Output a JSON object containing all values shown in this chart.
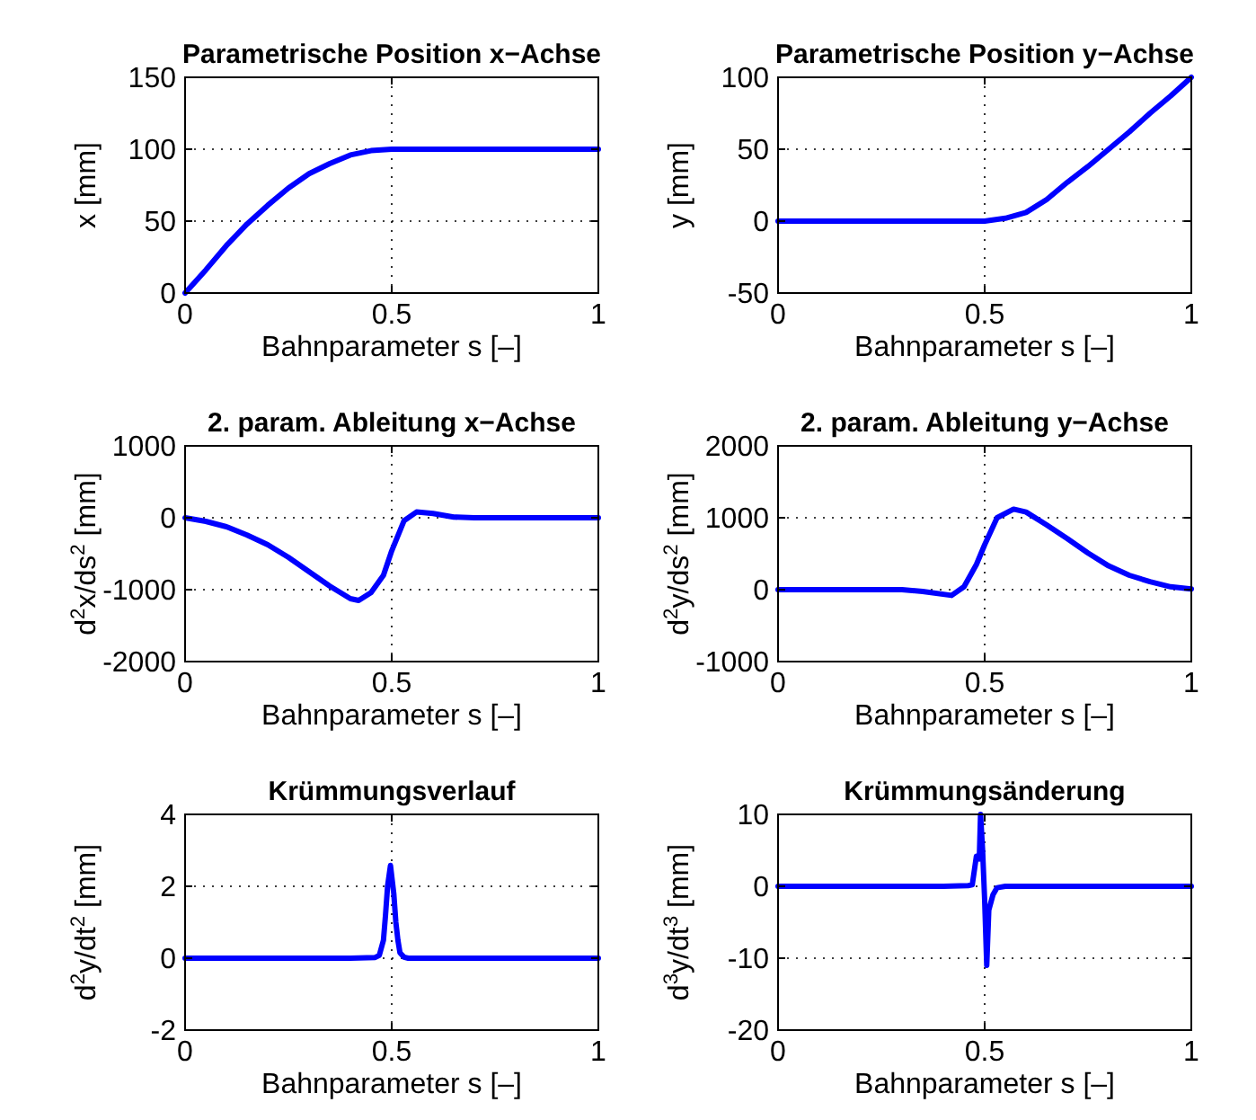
{
  "chart_data": [
    {
      "type": "line",
      "title": "Parametrische Position x−Achse",
      "xlabel": "Bahnparameter s [–]",
      "ylabel": "x [mm]",
      "xlim": [
        0,
        1
      ],
      "xticks": [
        0,
        0.5,
        1
      ],
      "ylim": [
        0,
        150
      ],
      "yticks": [
        0,
        50,
        100,
        150
      ],
      "grid": true,
      "marker": "none",
      "line_style": "solid",
      "series": [
        {
          "color": "#0000ff",
          "x": [
            0,
            0.05,
            0.1,
            0.15,
            0.2,
            0.25,
            0.3,
            0.35,
            0.4,
            0.45,
            0.5,
            0.6,
            0.7,
            0.8,
            0.9,
            1
          ],
          "values": [
            0,
            16,
            33,
            48,
            61,
            73,
            83,
            90,
            96,
            99,
            100,
            100,
            100,
            100,
            100,
            100
          ]
        }
      ]
    },
    {
      "type": "line",
      "title": "Parametrische Position y−Achse",
      "xlabel": "Bahnparameter s [–]",
      "ylabel": "y [mm]",
      "xlim": [
        0,
        1
      ],
      "xticks": [
        0,
        0.5,
        1
      ],
      "ylim": [
        -50,
        100
      ],
      "yticks": [
        -50,
        0,
        50,
        100
      ],
      "grid": true,
      "marker": "none",
      "line_style": "solid",
      "series": [
        {
          "color": "#0000ff",
          "x": [
            0,
            0.1,
            0.2,
            0.3,
            0.4,
            0.5,
            0.55,
            0.6,
            0.65,
            0.7,
            0.75,
            0.8,
            0.85,
            0.9,
            0.95,
            1
          ],
          "values": [
            0,
            0,
            0,
            0,
            0,
            0,
            2,
            6,
            15,
            27,
            38,
            50,
            62,
            75,
            87,
            100
          ]
        }
      ]
    },
    {
      "type": "line",
      "title": "2. param. Ableitung x−Achse",
      "xlabel": "Bahnparameter s [–]",
      "ylabel": "d$^{2}$x/ds$^{2}$ [mm]",
      "xlim": [
        0,
        1
      ],
      "xticks": [
        0,
        0.5,
        1
      ],
      "ylim": [
        -2000,
        1000
      ],
      "yticks": [
        -2000,
        -1000,
        0,
        1000
      ],
      "grid": true,
      "marker": "none",
      "line_style": "solid",
      "series": [
        {
          "color": "#0000ff",
          "x": [
            0,
            0.05,
            0.1,
            0.15,
            0.2,
            0.25,
            0.3,
            0.35,
            0.4,
            0.42,
            0.45,
            0.48,
            0.5,
            0.53,
            0.56,
            0.6,
            0.65,
            0.7,
            0.8,
            0.9,
            1
          ],
          "values": [
            0,
            -50,
            -125,
            -240,
            -375,
            -550,
            -750,
            -950,
            -1125,
            -1150,
            -1040,
            -800,
            -460,
            -40,
            80,
            60,
            10,
            0,
            0,
            0,
            0
          ]
        }
      ]
    },
    {
      "type": "line",
      "title": "2. param. Ableitung y−Achse",
      "xlabel": "Bahnparameter s [–]",
      "ylabel": "d$^{2}$y/ds$^{2}$ [mm]",
      "xlim": [
        0,
        1
      ],
      "xticks": [
        0,
        0.5,
        1
      ],
      "ylim": [
        -1000,
        2000
      ],
      "yticks": [
        -1000,
        0,
        1000,
        2000
      ],
      "grid": true,
      "marker": "none",
      "line_style": "solid",
      "series": [
        {
          "color": "#0000ff",
          "x": [
            0,
            0.1,
            0.2,
            0.3,
            0.35,
            0.42,
            0.45,
            0.48,
            0.5,
            0.53,
            0.57,
            0.6,
            0.65,
            0.7,
            0.75,
            0.8,
            0.85,
            0.9,
            0.95,
            1
          ],
          "values": [
            0,
            0,
            0,
            0,
            -25,
            -80,
            40,
            350,
            625,
            1000,
            1120,
            1080,
            900,
            710,
            510,
            330,
            200,
            110,
            40,
            10
          ]
        }
      ]
    },
    {
      "type": "line",
      "title": "Krümmungsverlauf",
      "xlabel": "Bahnparameter s [–]",
      "ylabel": "d$^{2}$y/dt$^{2}$ [mm]",
      "xlim": [
        0,
        1
      ],
      "xticks": [
        0,
        0.5,
        1
      ],
      "ylim": [
        -2,
        4
      ],
      "yticks": [
        -2,
        0,
        2,
        4
      ],
      "grid": true,
      "marker": "none",
      "line_style": "solid",
      "series": [
        {
          "color": "#0000ff",
          "x": [
            0,
            0.2,
            0.4,
            0.46,
            0.47,
            0.48,
            0.485,
            0.49,
            0.497,
            0.505,
            0.51,
            0.515,
            0.52,
            0.53,
            0.54,
            0.6,
            0.8,
            1
          ],
          "values": [
            0,
            0,
            0,
            0.02,
            0.08,
            0.5,
            1.2,
            2,
            2.58,
            1.8,
            1,
            0.5,
            0.15,
            0.03,
            0,
            0,
            0,
            0
          ]
        }
      ]
    },
    {
      "type": "line",
      "title": "Krümmungsänderung",
      "xlabel": "Bahnparameter s [–]",
      "ylabel": "d$^{3}$y/dt$^{3}$ [mm]",
      "xlim": [
        0,
        1
      ],
      "xticks": [
        0,
        0.5,
        1
      ],
      "ylim": [
        -20,
        10
      ],
      "yticks": [
        -20,
        -10,
        0,
        10
      ],
      "grid": true,
      "marker": "none",
      "line_style": "solid",
      "series": [
        {
          "color": "#0000ff",
          "x": [
            0,
            0.2,
            0.4,
            0.46,
            0.47,
            0.48,
            0.487,
            0.49,
            0.495,
            0.5,
            0.505,
            0.51,
            0.52,
            0.53,
            0.55,
            0.7,
            1
          ],
          "values": [
            0,
            0,
            0,
            0.1,
            0.2,
            4.2,
            3.8,
            10,
            5,
            -2,
            -11,
            -3.3,
            -1.2,
            -0.2,
            0,
            0,
            0
          ]
        }
      ]
    }
  ]
}
